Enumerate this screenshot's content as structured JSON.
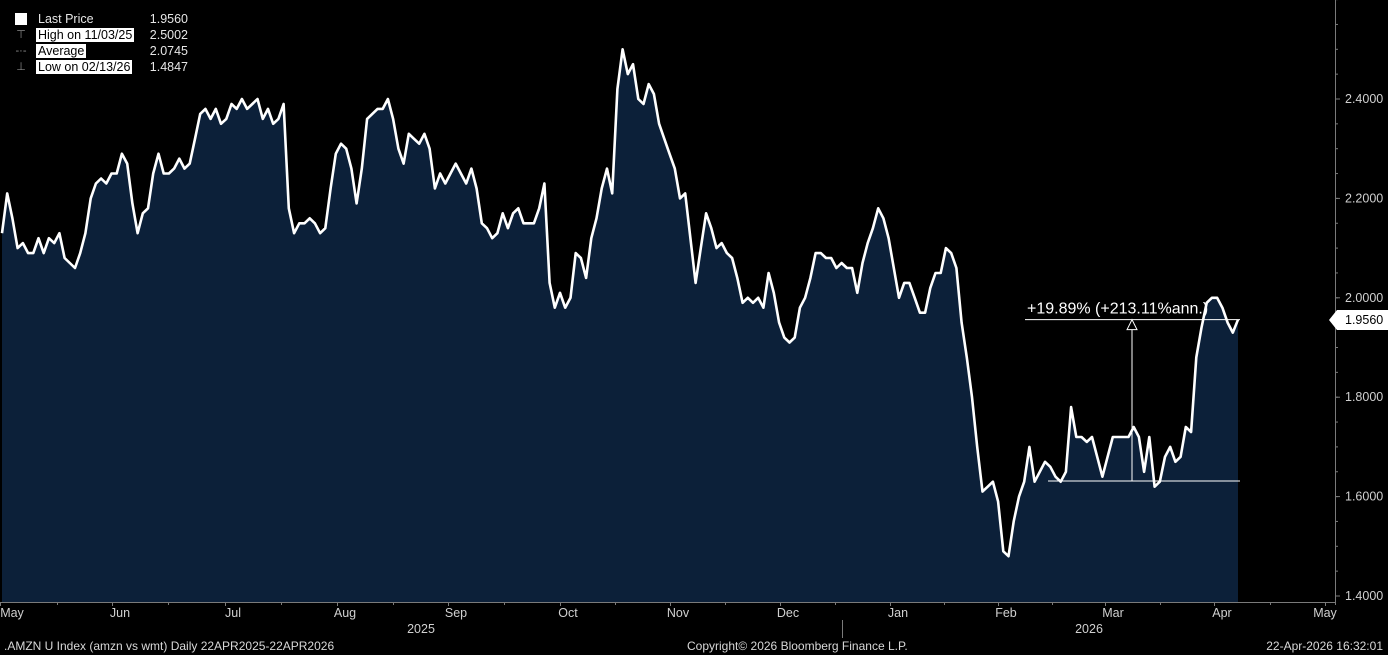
{
  "legend": {
    "last_label": "Last Price",
    "last_value": "1.9560",
    "high_label": "High on 11/03/25",
    "high_value": "2.5002",
    "avg_label": "Average",
    "avg_value": "2.0745",
    "low_label": "Low on 02/13/26",
    "low_value": "1.4847"
  },
  "footer": {
    "left": ".AMZN U Index (amzn vs wmt) Daily 22APR2025-22APR2026",
    "center": "Copyright© 2026 Bloomberg Finance L.P.",
    "right": "22-Apr-2026 16:32:01"
  },
  "price_tag": "1.9560",
  "annotation": "+19.89% (+213.11%ann.)",
  "colors": {
    "area": "#0c2039",
    "line": "#ffffff",
    "background": "#000000",
    "axis": "#7a7a7a"
  },
  "chart_data": {
    "type": "area",
    "title": ".AMZN U Index (amzn vs wmt)",
    "series": [
      {
        "name": "Last Price",
        "x_start": "2025-04-22",
        "x_end": "2026-04-22",
        "values": [
          2.13,
          2.21,
          2.16,
          2.1,
          2.11,
          2.09,
          2.09,
          2.12,
          2.09,
          2.12,
          2.11,
          2.13,
          2.08,
          2.07,
          2.06,
          2.09,
          2.13,
          2.2,
          2.23,
          2.24,
          2.23,
          2.25,
          2.25,
          2.29,
          2.27,
          2.19,
          2.13,
          2.17,
          2.18,
          2.25,
          2.29,
          2.25,
          2.25,
          2.26,
          2.28,
          2.26,
          2.27,
          2.32,
          2.37,
          2.38,
          2.36,
          2.38,
          2.35,
          2.36,
          2.39,
          2.38,
          2.4,
          2.38,
          2.39,
          2.4,
          2.36,
          2.38,
          2.35,
          2.36,
          2.39,
          2.18,
          2.13,
          2.15,
          2.15,
          2.16,
          2.15,
          2.13,
          2.14,
          2.22,
          2.29,
          2.31,
          2.3,
          2.26,
          2.19,
          2.26,
          2.36,
          2.37,
          2.38,
          2.38,
          2.4,
          2.36,
          2.3,
          2.27,
          2.33,
          2.32,
          2.31,
          2.33,
          2.3,
          2.22,
          2.25,
          2.23,
          2.25,
          2.27,
          2.25,
          2.23,
          2.26,
          2.22,
          2.15,
          2.14,
          2.12,
          2.13,
          2.17,
          2.14,
          2.17,
          2.18,
          2.15,
          2.15,
          2.15,
          2.18,
          2.23,
          2.03,
          1.98,
          2.01,
          1.98,
          2.0,
          2.09,
          2.08,
          2.04,
          2.12,
          2.16,
          2.22,
          2.26,
          2.21,
          2.42,
          2.5,
          2.45,
          2.47,
          2.4,
          2.39,
          2.43,
          2.41,
          2.35,
          2.32,
          2.29,
          2.26,
          2.2,
          2.21,
          2.12,
          2.03,
          2.1,
          2.17,
          2.14,
          2.1,
          2.11,
          2.09,
          2.08,
          2.04,
          1.99,
          2.0,
          1.99,
          2.0,
          1.98,
          2.05,
          2.01,
          1.95,
          1.92,
          1.91,
          1.92,
          1.98,
          2.0,
          2.04,
          2.09,
          2.09,
          2.08,
          2.08,
          2.06,
          2.07,
          2.06,
          2.06,
          2.01,
          2.07,
          2.11,
          2.14,
          2.18,
          2.16,
          2.12,
          2.06,
          2.0,
          2.03,
          2.03,
          2.0,
          1.97,
          1.97,
          2.02,
          2.05,
          2.05,
          2.1,
          2.09,
          2.06,
          1.95,
          1.88,
          1.8,
          1.7,
          1.61,
          1.62,
          1.63,
          1.59,
          1.49,
          1.48,
          1.55,
          1.6,
          1.63,
          1.7,
          1.63,
          1.65,
          1.67,
          1.66,
          1.64,
          1.63,
          1.65,
          1.78,
          1.72,
          1.72,
          1.71,
          1.72,
          1.68,
          1.64,
          1.68,
          1.72,
          1.72,
          1.72,
          1.72,
          1.74,
          1.72,
          1.65,
          1.72,
          1.62,
          1.63,
          1.68,
          1.7,
          1.67,
          1.68,
          1.74,
          1.73,
          1.88,
          1.94,
          1.99,
          2.0,
          2.0,
          1.98,
          1.95,
          1.93,
          1.956
        ]
      }
    ],
    "y_ticks": [
      "1.4000",
      "1.6000",
      "1.8000",
      "2.0000",
      "2.2000",
      "2.4000"
    ],
    "ylim": [
      1.39,
      2.6
    ],
    "x_month_labels": [
      "May",
      "Jun",
      "Jul",
      "Aug",
      "Sep",
      "Oct",
      "Nov",
      "Dec",
      "Jan",
      "Feb",
      "Mar",
      "Apr",
      "May"
    ],
    "x_year_labels": [
      "2025",
      "2026"
    ],
    "annotation": {
      "text": "+19.89% (+213.11%ann.)",
      "from_value": 1.6315,
      "to_value": 1.956
    },
    "last_value": 1.956,
    "high": {
      "date": "11/03/25",
      "value": 2.5002
    },
    "low": {
      "date": "02/13/26",
      "value": 1.4847
    },
    "average": 2.0745,
    "grid": false
  }
}
